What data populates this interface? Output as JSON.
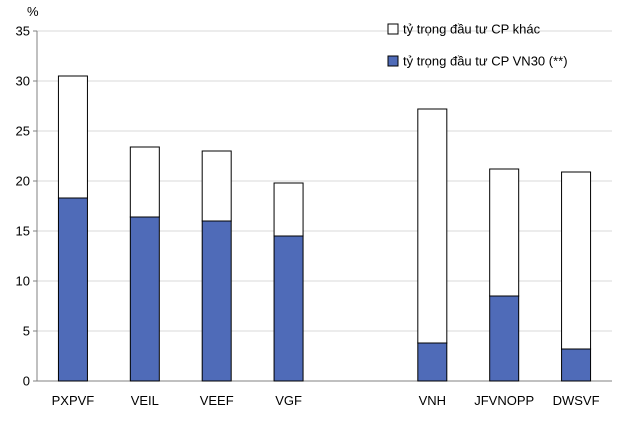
{
  "chart_data": {
    "type": "bar",
    "stacked": true,
    "y_unit": "%",
    "ylim": [
      0,
      35
    ],
    "yticks": [
      0,
      5,
      10,
      15,
      20,
      25,
      30,
      35
    ],
    "grid": true,
    "legend_position": "top-right",
    "categories": [
      "PXPVF",
      "VEIL",
      "VEEF",
      "VGF",
      "",
      "VNH",
      "JFVNOPP",
      "DWSVF"
    ],
    "series": [
      {
        "name": "tỷ trọng đầu tư CP VN30 (**)",
        "color": "#4f6bb8",
        "values": [
          18.3,
          16.4,
          16.0,
          14.5,
          null,
          3.8,
          8.5,
          3.2
        ]
      },
      {
        "name": "tỷ trọng đầu tư CP khác",
        "color": "#ffffff",
        "values": [
          12.2,
          7.0,
          7.0,
          5.3,
          null,
          23.4,
          12.7,
          17.7
        ]
      }
    ],
    "legend_order": [
      1,
      0
    ]
  }
}
